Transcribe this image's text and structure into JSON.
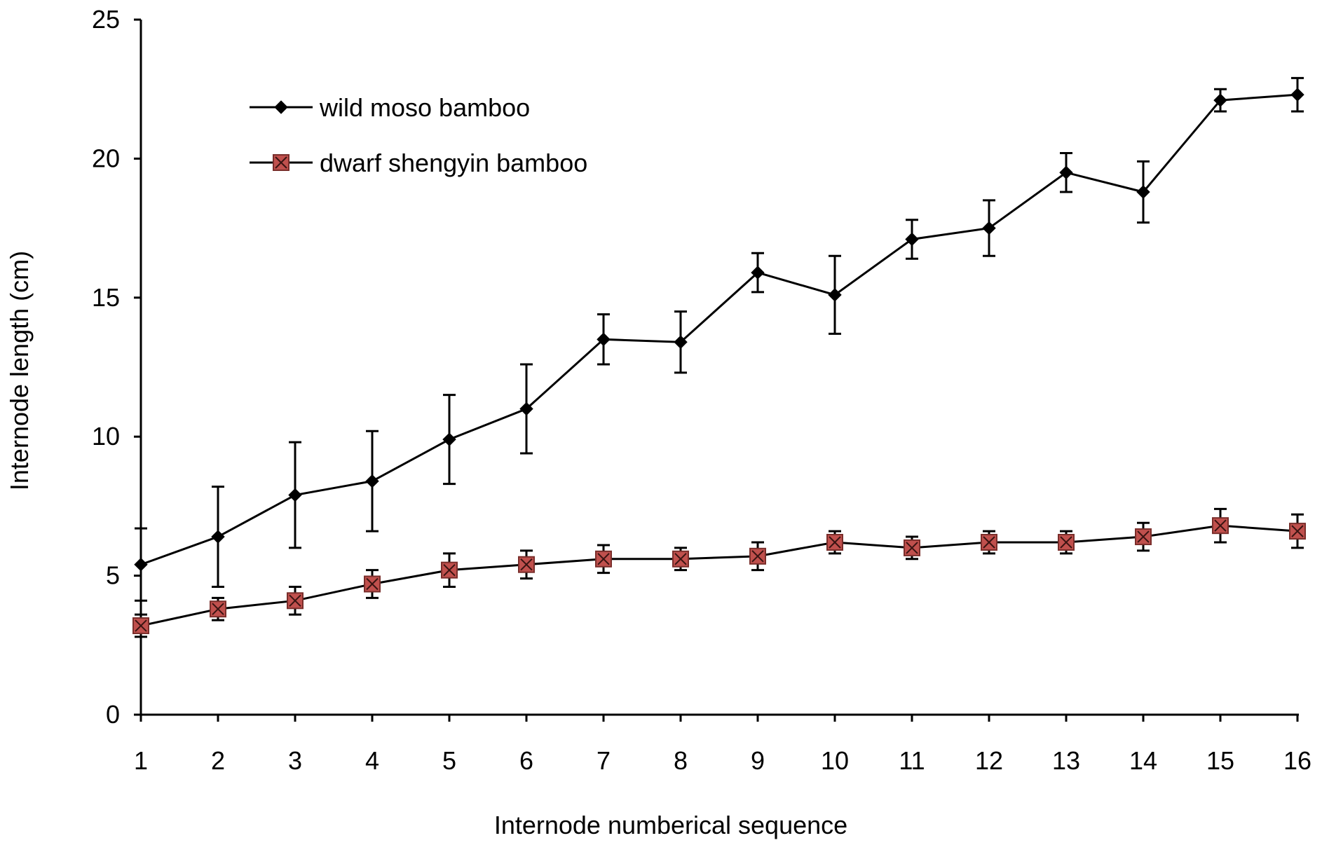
{
  "chart_data": {
    "type": "line",
    "title": "",
    "xlabel": "Internode numberical  sequence",
    "ylabel": "Internode length (cm)",
    "ylim": [
      0,
      25
    ],
    "yticks": [
      "0",
      "5",
      "10",
      "15",
      "20",
      "25"
    ],
    "categories": [
      "1",
      "2",
      "3",
      "4",
      "5",
      "6",
      "7",
      "8",
      "9",
      "10",
      "11",
      "12",
      "13",
      "14",
      "15",
      "16"
    ],
    "legend_position": "top-left",
    "grid": false,
    "series": [
      {
        "name": "wild moso bamboo",
        "marker": "diamond",
        "color": "#000000",
        "values": [
          5.4,
          6.4,
          7.9,
          8.4,
          9.9,
          11.0,
          13.5,
          13.4,
          15.9,
          15.1,
          17.1,
          17.5,
          19.5,
          18.8,
          22.1,
          22.3
        ],
        "errors": [
          1.3,
          1.8,
          1.9,
          1.8,
          1.6,
          1.6,
          0.9,
          1.1,
          0.7,
          1.4,
          0.7,
          1.0,
          0.7,
          1.1,
          0.4,
          0.6
        ]
      },
      {
        "name": "dwarf shengyin bamboo",
        "marker": "square-x",
        "color": "#c0504d",
        "values": [
          3.2,
          3.8,
          4.1,
          4.7,
          5.2,
          5.4,
          5.6,
          5.6,
          5.7,
          6.2,
          6.0,
          6.2,
          6.2,
          6.4,
          6.8,
          6.6
        ],
        "errors": [
          0.4,
          0.4,
          0.5,
          0.5,
          0.6,
          0.5,
          0.5,
          0.4,
          0.5,
          0.4,
          0.4,
          0.4,
          0.4,
          0.5,
          0.6,
          0.6
        ]
      }
    ]
  }
}
